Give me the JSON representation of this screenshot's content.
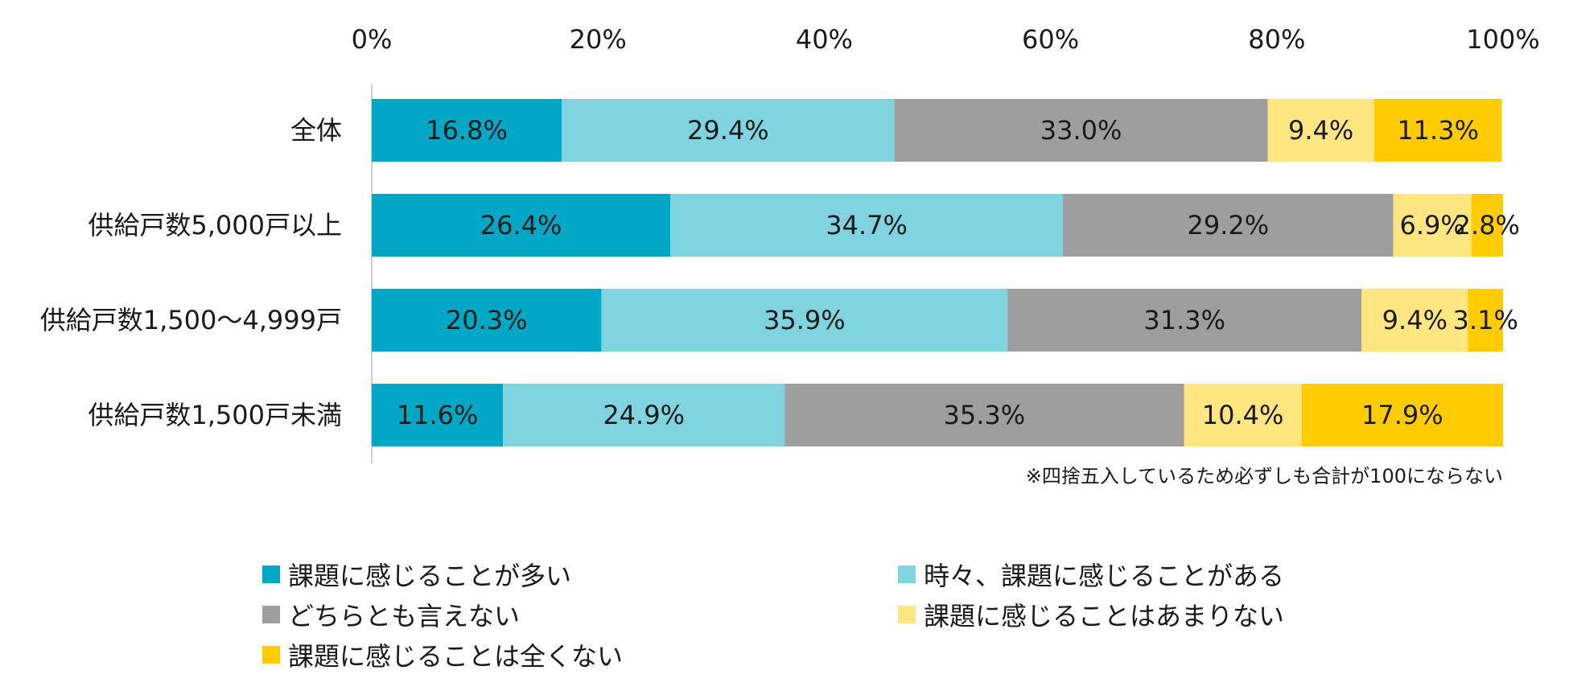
{
  "chart_data": {
    "type": "bar",
    "orientation": "horizontal",
    "stacked": true,
    "title": "",
    "xlabel": "",
    "ylabel": "",
    "xlim": [
      0,
      100
    ],
    "x_ticks": [
      "0%",
      "20%",
      "40%",
      "60%",
      "80%",
      "100%"
    ],
    "categories": [
      "全体",
      "供給戸数5,000戸以上",
      "供給戸数1,500～4,999戸",
      "供給戸数1,500戸未満"
    ],
    "series": [
      {
        "name": "課題に感じることが多い",
        "color": "#00A8C6",
        "values": [
          16.8,
          26.4,
          20.3,
          11.6
        ],
        "labels": [
          "16.8%",
          "26.4%",
          "20.3%",
          "11.6%"
        ]
      },
      {
        "name": "時々、課題に感じることがある",
        "color": "#7FD4E0",
        "values": [
          29.4,
          34.7,
          35.9,
          24.9
        ],
        "labels": [
          "29.4%",
          "34.7%",
          "35.9%",
          "24.9%"
        ]
      },
      {
        "name": "どちらとも言えない",
        "color": "#9E9E9E",
        "values": [
          33.0,
          29.2,
          31.3,
          35.3
        ],
        "labels": [
          "33.0%",
          "29.2%",
          "31.3%",
          "35.3%"
        ]
      },
      {
        "name": "課題に感じることはあまりない",
        "color": "#FFE680",
        "values": [
          9.4,
          6.9,
          9.4,
          10.4
        ],
        "labels": [
          "9.4%",
          "6.9%",
          "9.4%",
          "10.4%"
        ]
      },
      {
        "name": "課題に感じることは全くない",
        "color": "#FFCC00",
        "values": [
          11.3,
          2.8,
          3.1,
          17.9
        ],
        "labels": [
          "11.3%",
          "2.8%",
          "3.1%",
          "17.9%"
        ]
      }
    ],
    "note": "※四捨五入しているため必ずしも合計が100にならない",
    "legend_position": "bottom",
    "grid": false
  }
}
